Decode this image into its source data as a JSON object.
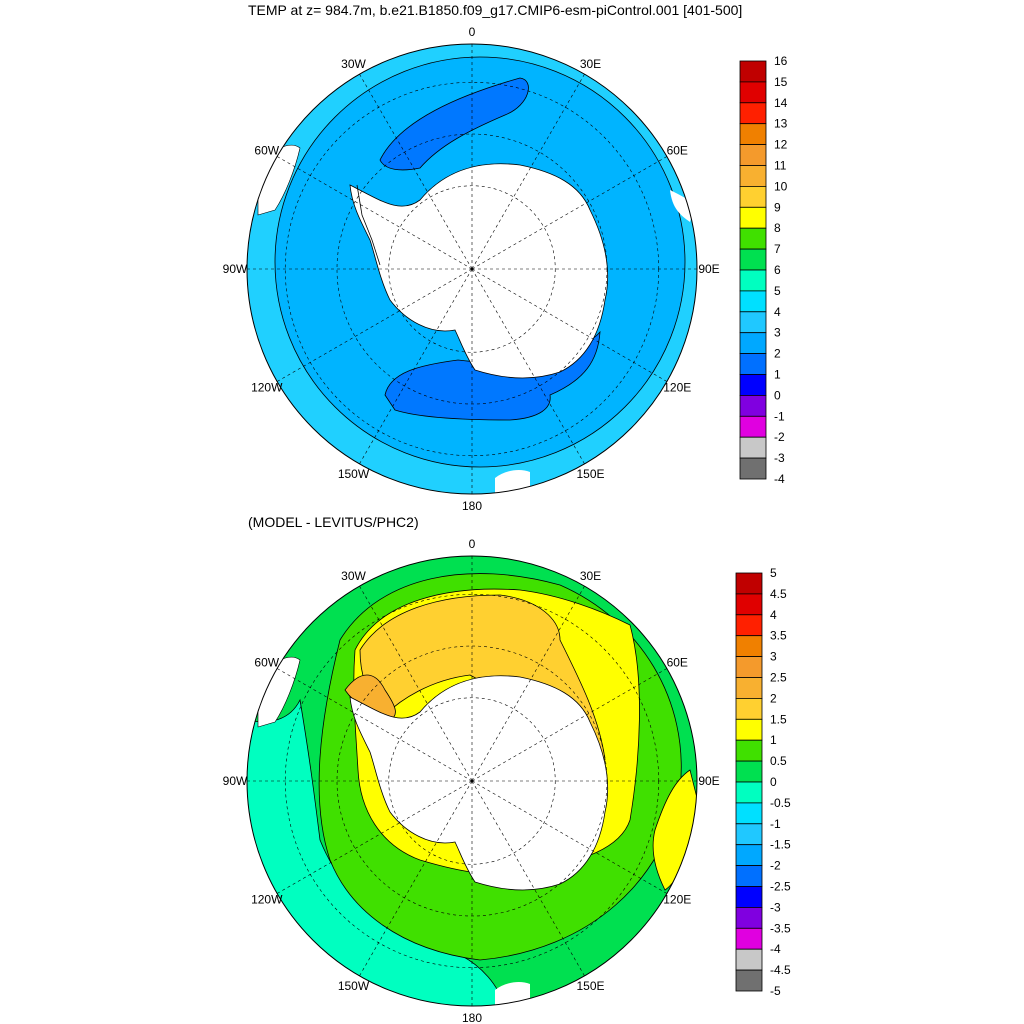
{
  "title": "TEMP at z= 984.7m, b.e21.B1850.f09_g17.CMIP6-esm-piControl.001 [401-500]",
  "subtitle": "(MODEL - LEVITUS/PHC2)",
  "map_labels": [
    "0",
    "30E",
    "60E",
    "90E",
    "120E",
    "150E",
    "180",
    "150W",
    "120W",
    "90W",
    "60W",
    "30W"
  ],
  "top_colorbar": {
    "labels": [
      "16",
      "15",
      "14",
      "13",
      "12",
      "11",
      "10",
      "9",
      "8",
      "7",
      "6",
      "5",
      "4",
      "3",
      "2",
      "1",
      "0",
      "-1",
      "-2",
      "-3",
      "-4"
    ],
    "colors": [
      "#c00000",
      "#e00000",
      "#ff2000",
      "#f08000",
      "#f49a2c",
      "#f8b030",
      "#ffd030",
      "#ffff00",
      "#40e000",
      "#00e050",
      "#00ffc0",
      "#00e0ff",
      "#20c8ff",
      "#00a8ff",
      "#0070ff",
      "#0000ff",
      "#8000e0",
      "#e000e0",
      "#c8c8c8",
      "#707070"
    ]
  },
  "bottom_colorbar": {
    "labels": [
      "5",
      "4.5",
      "4",
      "3.5",
      "3",
      "2.5",
      "2",
      "1.5",
      "1",
      "0.5",
      "0",
      "-0.5",
      "-1",
      "-1.5",
      "-2",
      "-2.5",
      "-3",
      "-3.5",
      "-4",
      "-4.5",
      "-5"
    ],
    "colors": [
      "#c00000",
      "#e00000",
      "#ff2000",
      "#f08000",
      "#f49a2c",
      "#f8b030",
      "#ffd030",
      "#ffff00",
      "#40e000",
      "#00e050",
      "#00ffc0",
      "#00e0ff",
      "#20c8ff",
      "#00a8ff",
      "#0070ff",
      "#0000ff",
      "#8000e0",
      "#e000e0",
      "#c8c8c8",
      "#707070"
    ]
  },
  "fills": {
    "top_base": "#00b4ff",
    "top_outer": "#20d0ff",
    "top_deep": "#0078ff",
    "land": "#ffffff",
    "bottom_base": "#00e050",
    "bottom_green2": "#40e000",
    "bottom_yellow": "#ffff00",
    "bottom_gold": "#ffd030",
    "bottom_orange": "#f8b030",
    "bottom_teal": "#00ffc0",
    "bottom_cyan": "#00e0ff"
  }
}
